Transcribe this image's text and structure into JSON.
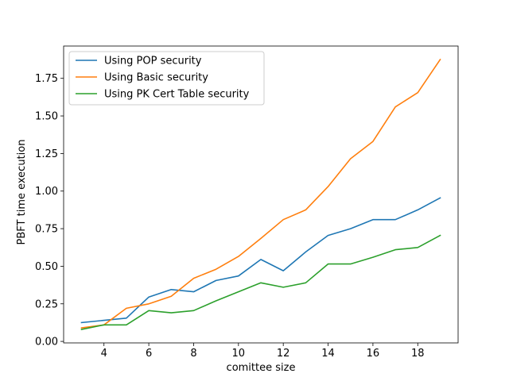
{
  "chart_data": {
    "type": "line",
    "title": "",
    "xlabel": "comittee size",
    "ylabel": "PBFT time execution",
    "xlim": [
      2.2,
      19.8
    ],
    "ylim": [
      -0.01,
      1.965
    ],
    "xticks": [
      4,
      6,
      8,
      10,
      12,
      14,
      16,
      18
    ],
    "xtick_labels": [
      "4",
      "6",
      "8",
      "10",
      "12",
      "14",
      "16",
      "18"
    ],
    "yticks": [
      0.0,
      0.25,
      0.5,
      0.75,
      1.0,
      1.25,
      1.5,
      1.75
    ],
    "ytick_labels": [
      "0.00",
      "0.25",
      "0.50",
      "0.75",
      "1.00",
      "1.25",
      "1.50",
      "1.75"
    ],
    "grid": false,
    "legend_position": "top-left",
    "x": [
      3,
      4,
      5,
      6,
      7,
      8,
      9,
      10,
      11,
      12,
      13,
      14,
      15,
      16,
      17,
      18,
      19
    ],
    "series": [
      {
        "name": "Using POP security",
        "color": "#1f77b4",
        "values": [
          0.125,
          0.14,
          0.155,
          0.295,
          0.345,
          0.33,
          0.405,
          0.435,
          0.545,
          0.47,
          0.595,
          0.705,
          0.75,
          0.81,
          0.81,
          0.875,
          0.955
        ]
      },
      {
        "name": "Using Basic security",
        "color": "#ff7f0e",
        "values": [
          0.09,
          0.11,
          0.22,
          0.25,
          0.3,
          0.42,
          0.48,
          0.565,
          0.685,
          0.81,
          0.875,
          1.03,
          1.215,
          1.33,
          1.56,
          1.655,
          1.875
        ]
      },
      {
        "name": "Using PK Cert Table security",
        "color": "#2ca02c",
        "values": [
          0.08,
          0.11,
          0.11,
          0.205,
          0.19,
          0.205,
          0.27,
          0.33,
          0.39,
          0.36,
          0.39,
          0.515,
          0.515,
          0.56,
          0.61,
          0.625,
          0.705
        ]
      }
    ]
  }
}
